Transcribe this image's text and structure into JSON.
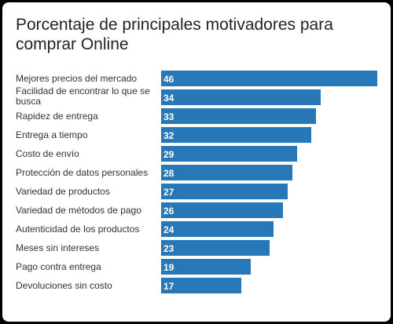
{
  "chart_data": {
    "type": "bar",
    "orientation": "horizontal",
    "title": "Porcentaje de principales motivadores para comprar Online",
    "categories": [
      [
        "Mejores precios del mercado"
      ],
      [
        "Facilidad de encontrar lo que se",
        "busca"
      ],
      [
        "Rapidez de entrega"
      ],
      [
        "Entrega a tiempo"
      ],
      [
        "Costo de envío"
      ],
      [
        "Protección de datos personales"
      ],
      [
        "Variedad de productos"
      ],
      [
        "Variedad de métodos de pago"
      ],
      [
        "Autenticidad de los productos"
      ],
      [
        "Meses sin intereses"
      ],
      [
        "Pago contra entrega"
      ],
      [
        "Devoluciones sin costo"
      ]
    ],
    "values": [
      46,
      34,
      33,
      32,
      29,
      28,
      27,
      26,
      24,
      23,
      19,
      17
    ],
    "xlim": [
      0,
      46
    ],
    "bar_color": "#2878b8",
    "grid": false,
    "legend": "none"
  }
}
